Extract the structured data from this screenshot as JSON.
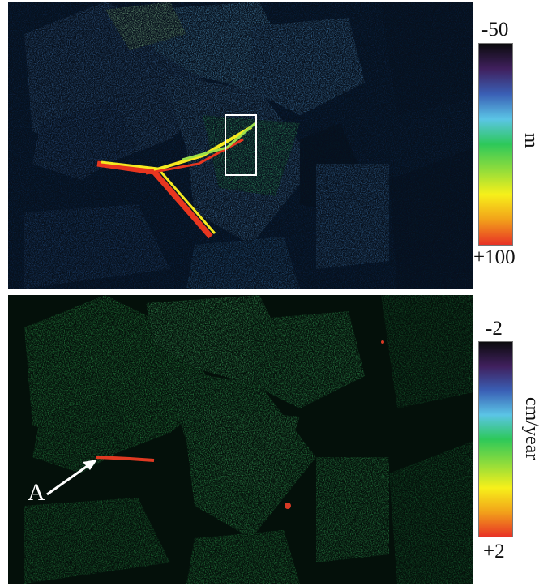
{
  "top_panel": {
    "scale": {
      "min_label": "-50",
      "max_label": "+100",
      "unit": "m"
    },
    "colormap": [
      "#0b0b0e",
      "#40205e",
      "#3a5fb5",
      "#5bc5e6",
      "#2dc85a",
      "#8fdc3c",
      "#f7f01a",
      "#f2a11a",
      "#e83226"
    ]
  },
  "bottom_panel": {
    "scale": {
      "min_label": "-2",
      "max_label": "+2",
      "unit": "cm/year"
    },
    "colormap": [
      "#0b0b0e",
      "#40205e",
      "#3a5fb5",
      "#5bc5e6",
      "#2dc85a",
      "#8fdc3c",
      "#f7f01a",
      "#f2a11a",
      "#e83226"
    ],
    "annotation": {
      "label": "A"
    }
  }
}
